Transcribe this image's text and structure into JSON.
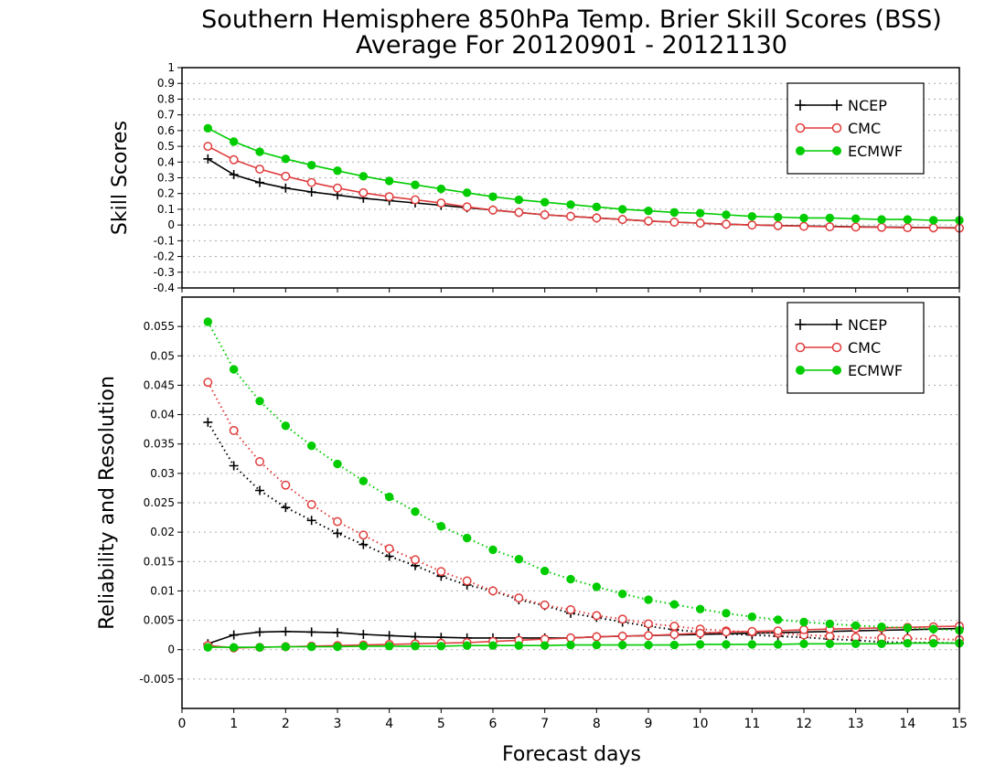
{
  "title_line1": "Southern Hemisphere 850hPa Temp. Brier Skill Scores (BSS)",
  "title_line2": "Average For 20120901 - 20121130",
  "xlabel": "Forecast days",
  "colors": {
    "NCEP": "#000000",
    "CMC": "#e03c3c",
    "ECMWF": "#00cc00"
  },
  "chart_data": [
    {
      "type": "line",
      "ylabel": "Skill Scores",
      "xlim": [
        0,
        15
      ],
      "ylim": [
        -0.4,
        1
      ],
      "x_ticks": [
        "0",
        "1",
        "2",
        "3",
        "4",
        "5",
        "6",
        "7",
        "8",
        "9",
        "10",
        "11",
        "12",
        "13",
        "14",
        "15"
      ],
      "y_ticks": [
        "-0.4",
        "-0.3",
        "-0.2",
        "-0.1",
        "0",
        "0.1",
        "0.2",
        "0.3",
        "0.4",
        "0.5",
        "0.6",
        "0.7",
        "0.8",
        "0.9",
        "1"
      ],
      "grid": "dotted horizontal",
      "legend": {
        "position": "top-right",
        "entries": [
          "NCEP",
          "CMC",
          "ECMWF"
        ]
      },
      "x": [
        0.5,
        1,
        1.5,
        2,
        2.5,
        3,
        3.5,
        4,
        4.5,
        5,
        5.5,
        6,
        6.5,
        7,
        7.5,
        8,
        8.5,
        9,
        9.5,
        10,
        10.5,
        11,
        11.5,
        12,
        12.5,
        13,
        13.5,
        14,
        14.5,
        15
      ],
      "series": [
        {
          "name": "NCEP",
          "marker": "plus",
          "style": "solid",
          "values": [
            0.42,
            0.32,
            0.27,
            0.235,
            0.21,
            0.19,
            0.17,
            0.155,
            0.14,
            0.125,
            0.11,
            0.095,
            0.08,
            0.065,
            0.055,
            0.045,
            0.035,
            0.025,
            0.018,
            0.012,
            0.005,
            0.0,
            -0.003,
            -0.006,
            -0.009,
            -0.011,
            -0.013,
            -0.015,
            -0.017,
            -0.018
          ]
        },
        {
          "name": "CMC",
          "marker": "open-circle",
          "style": "solid",
          "values": [
            0.5,
            0.415,
            0.355,
            0.31,
            0.27,
            0.235,
            0.205,
            0.18,
            0.16,
            0.14,
            0.115,
            0.095,
            0.08,
            0.065,
            0.055,
            0.045,
            0.035,
            0.025,
            0.018,
            0.012,
            0.005,
            0.0,
            -0.004,
            -0.008,
            -0.011,
            -0.013,
            -0.015,
            -0.017,
            -0.018,
            -0.02
          ]
        },
        {
          "name": "ECMWF",
          "marker": "filled-circle",
          "style": "solid",
          "values": [
            0.615,
            0.53,
            0.465,
            0.42,
            0.38,
            0.345,
            0.31,
            0.28,
            0.255,
            0.23,
            0.205,
            0.18,
            0.16,
            0.145,
            0.13,
            0.115,
            0.1,
            0.09,
            0.08,
            0.075,
            0.065,
            0.055,
            0.05,
            0.045,
            0.045,
            0.04,
            0.035,
            0.035,
            0.03,
            0.03
          ]
        }
      ]
    },
    {
      "type": "line",
      "ylabel": "Reliability and Resolution",
      "xlim": [
        0,
        15
      ],
      "ylim": [
        -0.01,
        0.06
      ],
      "x_ticks": [
        "0",
        "1",
        "2",
        "3",
        "4",
        "5",
        "6",
        "7",
        "8",
        "9",
        "10",
        "11",
        "12",
        "13",
        "14",
        "15"
      ],
      "y_ticks": [
        "-0.005",
        "0",
        "0.005",
        "0.01",
        "0.015",
        "0.02",
        "0.025",
        "0.03",
        "0.035",
        "0.04",
        "0.045",
        "0.05",
        "0.055"
      ],
      "grid": "dotted horizontal",
      "legend": {
        "position": "top-right",
        "entries": [
          "NCEP",
          "CMC",
          "ECMWF"
        ]
      },
      "x": [
        0.5,
        1,
        1.5,
        2,
        2.5,
        3,
        3.5,
        4,
        4.5,
        5,
        5.5,
        6,
        6.5,
        7,
        7.5,
        8,
        8.5,
        9,
        9.5,
        10,
        10.5,
        11,
        11.5,
        12,
        12.5,
        13,
        13.5,
        14,
        14.5,
        15
      ],
      "series": [
        {
          "name": "NCEP",
          "marker": "plus",
          "style": "dotted",
          "values": [
            0.0387,
            0.0313,
            0.0271,
            0.0242,
            0.022,
            0.0198,
            0.0179,
            0.0159,
            0.0143,
            0.0125,
            0.011,
            0.01,
            0.0085,
            0.0075,
            0.0062,
            0.0055,
            0.0047,
            0.004,
            0.0034,
            0.003,
            0.0027,
            0.0025,
            0.0023,
            0.0021,
            0.0018,
            0.0016,
            0.0013,
            0.0012,
            0.0012,
            0.0011
          ]
        },
        {
          "name": "NCEP",
          "marker": "plus",
          "style": "solid",
          "values": [
            0.001,
            0.0025,
            0.003,
            0.0031,
            0.003,
            0.0029,
            0.0026,
            0.0024,
            0.0022,
            0.0021,
            0.002,
            0.002,
            0.002,
            0.002,
            0.002,
            0.0022,
            0.0023,
            0.0024,
            0.0025,
            0.0026,
            0.0027,
            0.0028,
            0.0029,
            0.003,
            0.0031,
            0.0032,
            0.0033,
            0.0034,
            0.0035,
            0.0036
          ]
        },
        {
          "name": "CMC",
          "marker": "open-circle",
          "style": "dotted",
          "values": [
            0.0455,
            0.0373,
            0.032,
            0.028,
            0.0247,
            0.0218,
            0.0195,
            0.0172,
            0.0153,
            0.0133,
            0.0117,
            0.01,
            0.0088,
            0.0076,
            0.0068,
            0.0058,
            0.0052,
            0.0044,
            0.004,
            0.0035,
            0.0032,
            0.003,
            0.0028,
            0.0025,
            0.0023,
            0.0021,
            0.002,
            0.0019,
            0.0018,
            0.0017
          ]
        },
        {
          "name": "CMC",
          "marker": "open-circle",
          "style": "solid",
          "values": [
            0.0007,
            0.0003,
            0.0004,
            0.0005,
            0.0006,
            0.0007,
            0.0008,
            0.0009,
            0.001,
            0.0011,
            0.0012,
            0.0014,
            0.0016,
            0.0018,
            0.002,
            0.0022,
            0.0023,
            0.0024,
            0.0026,
            0.0028,
            0.003,
            0.0031,
            0.0032,
            0.0034,
            0.0035,
            0.0036,
            0.0037,
            0.0038,
            0.0039,
            0.004
          ]
        },
        {
          "name": "ECMWF",
          "marker": "filled-circle",
          "style": "dotted",
          "values": [
            0.0558,
            0.0477,
            0.0423,
            0.0381,
            0.0347,
            0.0316,
            0.0287,
            0.026,
            0.0235,
            0.021,
            0.019,
            0.017,
            0.0154,
            0.0134,
            0.012,
            0.0107,
            0.0095,
            0.0085,
            0.0077,
            0.0069,
            0.0062,
            0.0056,
            0.0051,
            0.0047,
            0.0044,
            0.0041,
            0.0039,
            0.0037,
            0.0035,
            0.0033
          ]
        },
        {
          "name": "ECMWF",
          "marker": "filled-circle",
          "style": "solid",
          "values": [
            0.0004,
            0.0004,
            0.0004,
            0.0005,
            0.0005,
            0.0005,
            0.0006,
            0.0006,
            0.0006,
            0.0006,
            0.0007,
            0.0007,
            0.0007,
            0.0007,
            0.0008,
            0.0008,
            0.0008,
            0.0008,
            0.0008,
            0.0009,
            0.0009,
            0.0009,
            0.0009,
            0.001,
            0.001,
            0.001,
            0.001,
            0.0011,
            0.0011,
            0.0011
          ]
        }
      ]
    }
  ]
}
